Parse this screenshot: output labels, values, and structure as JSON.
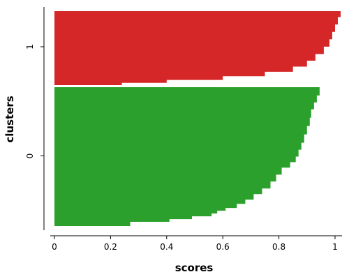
{
  "chart_data": {
    "type": "bar",
    "orientation": "horizontal",
    "title": "",
    "xlabel": "scores",
    "ylabel": "clusters",
    "xlim": [
      -0.01,
      1.03
    ],
    "x_ticks": [
      "0",
      "0.2",
      "0.4",
      "0.6",
      "0.8",
      "1"
    ],
    "x_tick_values": [
      0,
      0.2,
      0.4,
      0.6,
      0.8,
      1
    ],
    "y_ticks": [
      "0",
      "1"
    ],
    "grid": false,
    "legend": "none",
    "series": [
      {
        "cluster": "0",
        "color": "#2ca02c",
        "profile": [
          [
            0.0,
            0.27
          ],
          [
            0.02,
            0.27
          ],
          [
            0.03,
            0.41
          ],
          [
            0.05,
            0.49
          ],
          [
            0.07,
            0.56
          ],
          [
            0.09,
            0.58
          ],
          [
            0.11,
            0.61
          ],
          [
            0.13,
            0.65
          ],
          [
            0.16,
            0.68
          ],
          [
            0.19,
            0.71
          ],
          [
            0.23,
            0.74
          ],
          [
            0.27,
            0.77
          ],
          [
            0.32,
            0.79
          ],
          [
            0.37,
            0.81
          ],
          [
            0.42,
            0.84
          ],
          [
            0.46,
            0.86
          ],
          [
            0.5,
            0.87
          ],
          [
            0.55,
            0.88
          ],
          [
            0.6,
            0.89
          ],
          [
            0.66,
            0.9
          ],
          [
            0.72,
            0.91
          ],
          [
            0.78,
            0.915
          ],
          [
            0.84,
            0.925
          ],
          [
            0.89,
            0.935
          ],
          [
            0.94,
            0.945
          ],
          [
            1.0,
            0.95
          ]
        ]
      },
      {
        "cluster": "1",
        "color": "#d62728",
        "profile": [
          [
            0.0,
            0.24
          ],
          [
            0.02,
            0.24
          ],
          [
            0.03,
            0.4
          ],
          [
            0.07,
            0.6
          ],
          [
            0.12,
            0.75
          ],
          [
            0.18,
            0.85
          ],
          [
            0.25,
            0.9
          ],
          [
            0.33,
            0.93
          ],
          [
            0.42,
            0.96
          ],
          [
            0.52,
            0.98
          ],
          [
            0.62,
            0.99
          ],
          [
            0.72,
            1.0
          ],
          [
            0.82,
            1.01
          ],
          [
            0.92,
            1.02
          ],
          [
            1.0,
            1.03
          ]
        ]
      }
    ]
  }
}
